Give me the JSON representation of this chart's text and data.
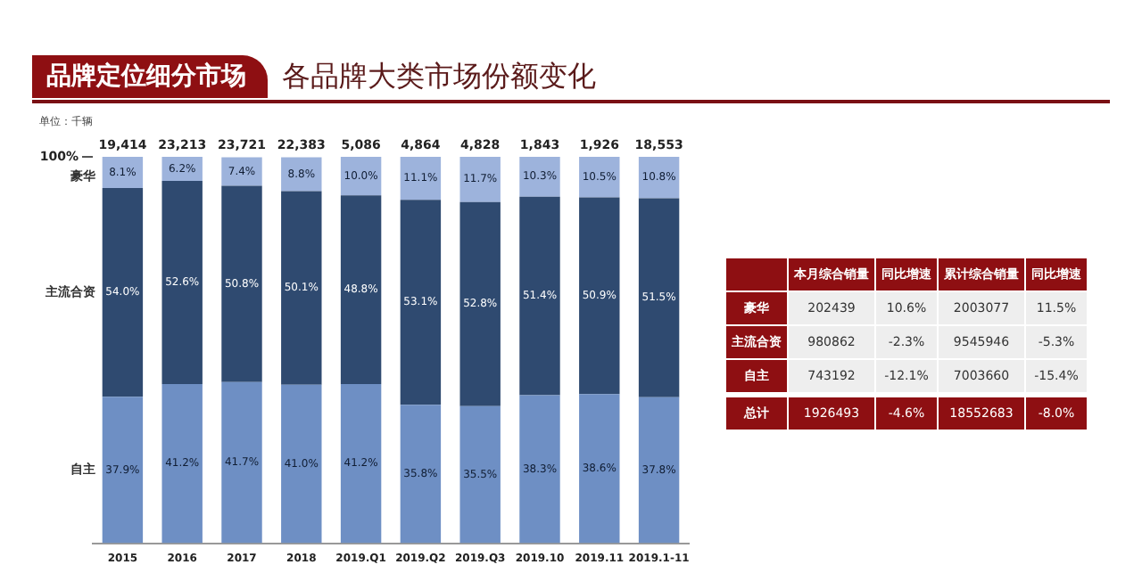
{
  "chart_data": [
    {
      "type": "bar",
      "title": "各品牌大类市场份额变化",
      "subtitle": "品牌定位细分市场",
      "annotations": [
        "单位：千辆",
        {
          "text": "19,414",
          "x": "2015",
          "y": 100
        },
        {
          "text": "23,213",
          "x": "2016",
          "y": 100
        },
        {
          "text": "23,721",
          "x": "2017",
          "y": 100
        },
        {
          "text": "22,383",
          "x": "2018",
          "y": 100
        },
        {
          "text": "5,086",
          "x": "2019.Q1",
          "y": 100
        },
        {
          "text": "4,864",
          "x": "2019.Q2",
          "y": 100
        },
        {
          "text": "4,828",
          "x": "2019.Q3",
          "y": 100
        },
        {
          "text": "1,843",
          "x": "2019.10",
          "y": 100
        },
        {
          "text": "1,926",
          "x": "2019.11",
          "y": 100
        },
        {
          "text": "18,553",
          "x": "2019.1-11",
          "y": 100
        }
      ],
      "categories": [
        "2015",
        "2016",
        "2017",
        "2018",
        "2019.Q1",
        "2019.Q2",
        "2019.Q3",
        "2019.10",
        "2019.11",
        "2019.1-11"
      ],
      "stacked": true,
      "ylim": [
        0,
        100
      ],
      "yticks": [
        {
          "value": 100,
          "label": "100%"
        }
      ],
      "grid": false,
      "legend": false,
      "series": [
        {
          "name": "自主",
          "color": "#6e8fc4",
          "values": [
            37.9,
            41.2,
            41.7,
            41.0,
            41.2,
            35.8,
            35.5,
            38.3,
            38.6,
            37.8
          ],
          "value_labels": [
            "37.9%",
            "41.2%",
            "41.7%",
            "41.0%",
            "41.2%",
            "35.8%",
            "35.5%",
            "38.3%",
            "38.6%",
            "37.8%"
          ]
        },
        {
          "name": "主流合资",
          "color": "#2f4a70",
          "values": [
            54.0,
            52.6,
            50.8,
            50.1,
            48.8,
            53.1,
            52.8,
            51.4,
            50.9,
            51.5
          ],
          "value_labels": [
            "54.0%",
            "52.6%",
            "50.8%",
            "50.1%",
            "48.8%",
            "53.1%",
            "52.8%",
            "51.4%",
            "50.9%",
            "51.5%"
          ]
        },
        {
          "name": "豪华",
          "color": "#9db3dc",
          "values": [
            8.1,
            6.2,
            7.4,
            8.8,
            10.0,
            11.1,
            11.7,
            10.3,
            10.5,
            10.8
          ],
          "value_labels": [
            "8.1%",
            "6.2%",
            "7.4%",
            "8.8%",
            "10.0%",
            "11.1%",
            "11.7%",
            "10.3%",
            "10.5%",
            "10.8%"
          ]
        }
      ]
    },
    {
      "type": "other",
      "categories": [
        "本月综合销量",
        "同比增速",
        "累计综合销量",
        "同比增速"
      ],
      "y_categories": [
        "豪华",
        "主流合资",
        "自主",
        "总计"
      ],
      "cell_labels": [
        [
          "202439",
          "10.6%",
          "2003077",
          "11.5%"
        ],
        [
          "980862",
          "-2.3%",
          "9545946",
          "-5.3%"
        ],
        [
          "743192",
          "-12.1%",
          "7003660",
          "-15.4%"
        ],
        [
          "1926493",
          "-4.6%",
          "18552683",
          "-8.0%"
        ]
      ]
    }
  ]
}
